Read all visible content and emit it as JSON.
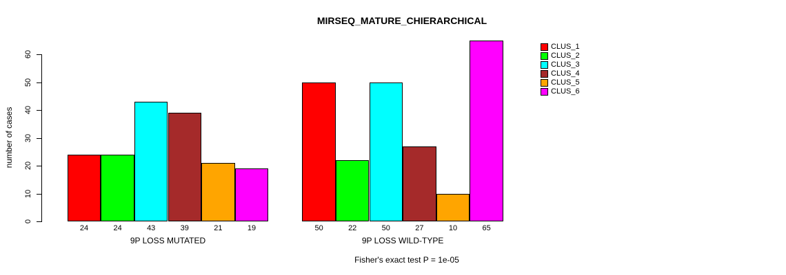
{
  "figure": {
    "title": "MIRSEQ_MATURE_CHIERARCHICAL",
    "ylabel": "number of cases",
    "annotation": "Fisher's exact test P = 1e-05"
  },
  "chart_data": {
    "type": "bar",
    "title": "MIRSEQ_MATURE_CHIERARCHICAL",
    "xlabel": "",
    "ylabel": "number of cases",
    "ylim": [
      0,
      65
    ],
    "yticks": [
      0,
      10,
      20,
      30,
      40,
      50,
      60
    ],
    "grid": false,
    "legend_position": "right-outside",
    "bar_value_labels": true,
    "categories": [
      "9P LOSS MUTATED",
      "9P LOSS WILD-TYPE"
    ],
    "series": [
      {
        "name": "CLUS_1",
        "color": "#FF0000",
        "values": [
          24,
          50
        ]
      },
      {
        "name": "CLUS_2",
        "color": "#00FF00",
        "values": [
          24,
          22
        ]
      },
      {
        "name": "CLUS_3",
        "color": "#00FFFF",
        "values": [
          43,
          50
        ]
      },
      {
        "name": "CLUS_4",
        "color": "#A52A2A",
        "values": [
          39,
          27
        ]
      },
      {
        "name": "CLUS_5",
        "color": "#FFA500",
        "values": [
          21,
          10
        ]
      },
      {
        "name": "CLUS_6",
        "color": "#FF00FF",
        "values": [
          19,
          65
        ]
      }
    ],
    "annotation": "Fisher's exact test P = 1e-05"
  }
}
